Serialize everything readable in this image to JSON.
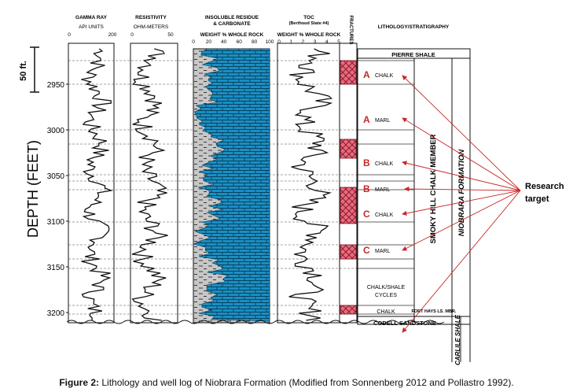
{
  "colors": {
    "carbonate": "#1a8fc2",
    "residue": "#c7c7c7",
    "fracture": "#e86a7d",
    "arrow": "#c82828",
    "grid": "#555555"
  },
  "scale_bar": {
    "label": "50 ft."
  },
  "depth_axis": {
    "title": "DEPTH (FEET)",
    "ticks": [
      {
        "value": 2950,
        "label": "2950"
      },
      {
        "value": 3000,
        "label": "3000"
      },
      {
        "value": 3050,
        "label": "3050"
      },
      {
        "value": 3100,
        "label": "3100"
      },
      {
        "value": 3150,
        "label": "3150"
      },
      {
        "value": 3200,
        "label": "3200"
      }
    ]
  },
  "tracks": {
    "gamma": {
      "title": "GAMMA RAY",
      "units": "API UNITS",
      "min_label": "0",
      "max_label": "200"
    },
    "resistivity": {
      "title": "RESISTIVITY",
      "units": "OHM-METERS",
      "min_label": "0",
      "max_label": "50"
    },
    "residue": {
      "title_line1": "INSOLUBLE RESIDUE",
      "title_line2": "& CARBONATE",
      "units": "WEIGHT % WHOLE ROCK",
      "ticks": [
        "0",
        "20",
        "40",
        "60",
        "80",
        "100"
      ]
    },
    "toc": {
      "title": "TOC",
      "subtitle": "(Berthoud State #4)",
      "units": "WEIGHT % WHOLE ROCK",
      "ticks": [
        "0",
        "1",
        "2",
        "3",
        "4",
        "5"
      ]
    },
    "fractures": {
      "title": "FRACTURES"
    },
    "lithology": {
      "title": "LITHOLOGY/STRATIGRAPHY"
    }
  },
  "units": [
    {
      "letter": "",
      "label": "PIERRE SHALE"
    },
    {
      "letter": "A",
      "label": "CHALK"
    },
    {
      "letter": "A",
      "label": "MARL"
    },
    {
      "letter": "B",
      "label": "CHALK"
    },
    {
      "letter": "B",
      "label": "MARL"
    },
    {
      "letter": "C",
      "label": "CHALK"
    },
    {
      "letter": "C",
      "label": "MARL"
    },
    {
      "letter": "",
      "label": "CHALK/SHALE CYCLES"
    },
    {
      "letter": "",
      "label": "CHALK"
    },
    {
      "letter": "",
      "label": "CODELL SANDSTONE"
    }
  ],
  "member_label": "SMOKY HILL CHALK MEMBER",
  "formation_label": "NIOBRARA FORMATION",
  "fort_hays_label": "FORT HAYS LS. MBR.",
  "carlile_label": "CARLILE SHALE",
  "research_target": "Research target",
  "caption": {
    "bold": "Figure 2:",
    "text": " Lithology and well log of Niobrara Formation (Modified from Sonnenberg 2012 and Pollastro 1992)."
  }
}
